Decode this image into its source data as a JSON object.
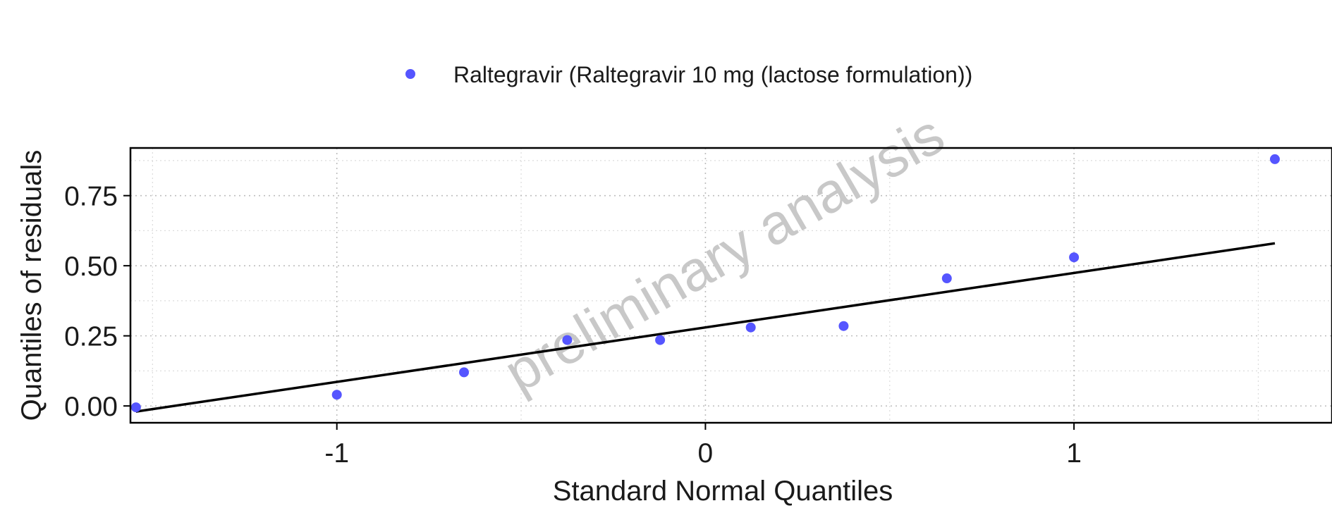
{
  "chart_data": {
    "type": "scatter",
    "title": "",
    "xlabel": "Standard Normal Quantiles",
    "ylabel": "Quantiles of residuals",
    "xlim": [
      -1.56,
      1.7
    ],
    "ylim": [
      -0.06,
      0.92
    ],
    "x_ticks": [
      -1,
      0,
      1
    ],
    "x_tick_labels": [
      "-1",
      "0",
      "1"
    ],
    "y_ticks": [
      0.0,
      0.25,
      0.5,
      0.75
    ],
    "y_tick_labels": [
      "0.00",
      "0.25",
      "0.50",
      "0.75"
    ],
    "grid": true,
    "legend_position": "top",
    "watermark": "preliminary analysis",
    "series": [
      {
        "name": "Raltegravir (Raltegravir 10 mg (lactose formulation))",
        "color": "#5555ff",
        "x": [
          -1.545,
          -1.0,
          -0.655,
          -0.375,
          -0.123,
          0.123,
          0.375,
          0.655,
          1.0,
          1.545
        ],
        "y": [
          -0.005,
          0.04,
          0.12,
          0.235,
          0.235,
          0.28,
          0.285,
          0.455,
          0.53,
          0.88
        ]
      }
    ],
    "reference_line": {
      "color": "#000000",
      "x": [
        -1.545,
        1.545
      ],
      "y": [
        -0.02,
        0.58
      ]
    }
  }
}
